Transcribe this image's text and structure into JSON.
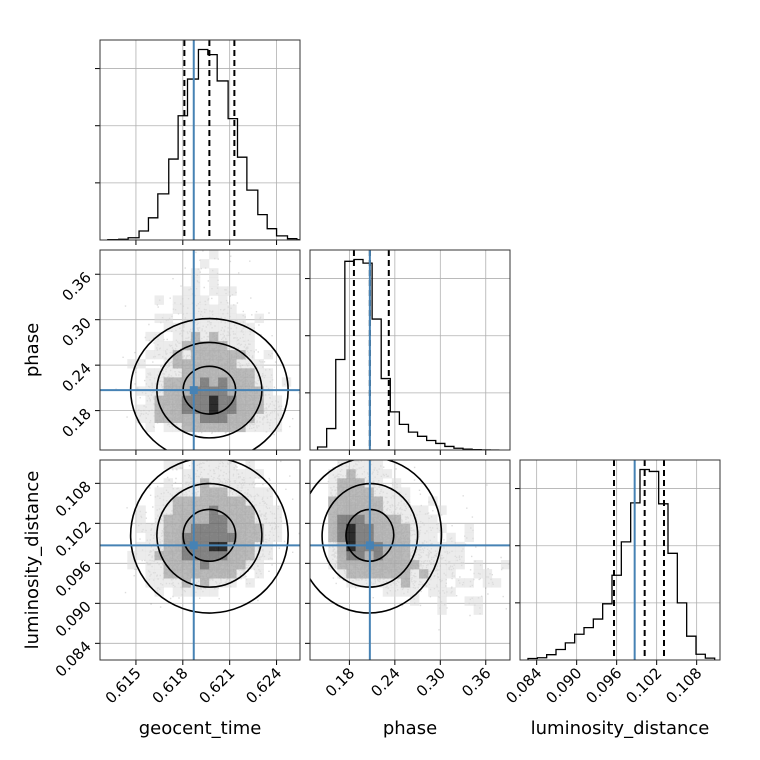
{
  "chart_data": {
    "type": "corner",
    "parameters": [
      {
        "name": "geocent_time",
        "range": [
          0.6127,
          0.6255
        ],
        "ticks": [
          0.615,
          0.618,
          0.621,
          0.624
        ],
        "tick_labels": [
          "0.615",
          "0.618",
          "0.621",
          "0.624"
        ],
        "truth": 0.6187,
        "quantiles": [
          0.6181,
          0.6197,
          0.6213
        ],
        "hist_edges": [
          0.6132,
          0.6139,
          0.6145,
          0.6152,
          0.6158,
          0.6164,
          0.6171,
          0.6177,
          0.6183,
          0.619,
          0.6196,
          0.6202,
          0.6209,
          0.6215,
          0.6221,
          0.6228,
          0.6234,
          0.624,
          0.6247,
          0.6253,
          0.6259
        ],
        "hist_counts": [
          2,
          4,
          12,
          48,
          118,
          245,
          430,
          660,
          855,
          1012,
          985,
          845,
          645,
          440,
          265,
          135,
          60,
          22,
          7,
          2
        ]
      },
      {
        "name": "phase",
        "range": [
          0.128,
          0.392
        ],
        "ticks": [
          0.18,
          0.24,
          0.3,
          0.36
        ],
        "tick_labels": [
          "0.18",
          "0.24",
          "0.30",
          "0.36"
        ],
        "truth": 0.207,
        "quantiles": [
          0.186,
          0.207,
          0.232
        ],
        "hist_edges": [
          0.138,
          0.15,
          0.162,
          0.174,
          0.186,
          0.198,
          0.21,
          0.222,
          0.234,
          0.246,
          0.258,
          0.27,
          0.282,
          0.294,
          0.306,
          0.318,
          0.33,
          0.342,
          0.354,
          0.366,
          0.378
        ],
        "hist_counts": [
          25,
          180,
          760,
          1585,
          1600,
          1570,
          1100,
          600,
          320,
          215,
          150,
          115,
          80,
          55,
          30,
          15,
          7,
          3,
          1,
          0
        ]
      },
      {
        "name": "luminosity_distance",
        "range": [
          0.0815,
          0.1115
        ],
        "ticks": [
          0.084,
          0.09,
          0.096,
          0.102,
          0.108
        ],
        "tick_labels": [
          "0.084",
          "0.090",
          "0.096",
          "0.102",
          "0.108"
        ],
        "truth": 0.0987,
        "quantiles": [
          0.0956,
          0.1002,
          0.1031
        ],
        "hist_edges": [
          0.0827,
          0.0841,
          0.0855,
          0.0869,
          0.0883,
          0.0897,
          0.0911,
          0.0925,
          0.0939,
          0.0953,
          0.0967,
          0.0981,
          0.0995,
          0.1009,
          0.1023,
          0.1037,
          0.1051,
          0.1065,
          0.1079,
          0.1093,
          0.1107
        ],
        "hist_counts": [
          8,
          12,
          28,
          55,
          90,
          135,
          170,
          215,
          295,
          445,
          620,
          825,
          1000,
          990,
          820,
          560,
          300,
          125,
          30,
          10
        ]
      }
    ],
    "pairs": [
      {
        "x": "geocent_time",
        "y": "phase",
        "mean": [
          0.6197,
          0.207
        ],
        "sd": [
          0.0016,
          0.03
        ],
        "skew_y": 1.5,
        "rho": -0.05,
        "truth": [
          0.6187,
          0.207
        ],
        "contour_levels": [
          0.3935,
          0.8647,
          0.9889
        ]
      },
      {
        "x": "geocent_time",
        "y": "luminosity_distance",
        "mean": [
          0.6197,
          0.1002
        ],
        "sd": [
          0.0016,
          0.0037
        ],
        "skew_y": -0.6,
        "rho": 0.15,
        "truth": [
          0.6187,
          0.0987
        ],
        "contour_levels": [
          0.3935,
          0.8647,
          0.9889
        ]
      },
      {
        "x": "phase",
        "y": "luminosity_distance",
        "mean": [
          0.207,
          0.1002
        ],
        "sd": [
          0.03,
          0.0037
        ],
        "skew_x": 1.5,
        "skew_y": -0.6,
        "rho": -0.35,
        "truth": [
          0.207,
          0.0987
        ],
        "contour_levels": [
          0.3935,
          0.8647,
          0.9889
        ]
      }
    ],
    "truth_color": "#4682b4",
    "hist_color": "#000000",
    "quantile_style": "dashed",
    "scatter_color": "#808080",
    "grid": true
  }
}
